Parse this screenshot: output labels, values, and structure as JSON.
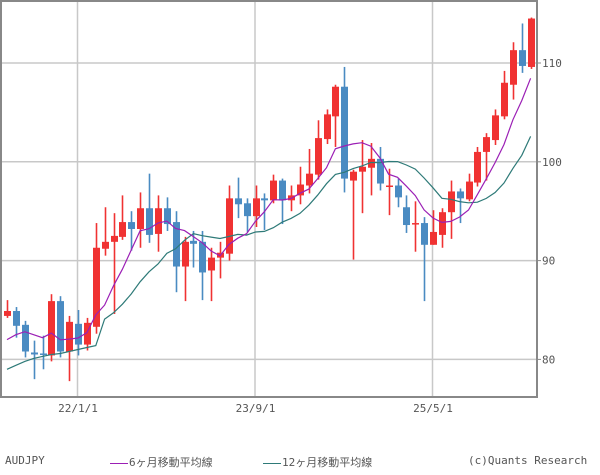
{
  "chart_data": {
    "type": "candlestick",
    "title": "AUDJPY",
    "period": "monthly",
    "xlabel": "",
    "ylabel": "",
    "ylim": [
      76.4,
      116.4
    ],
    "y_ticks": [
      80,
      90,
      100,
      110
    ],
    "x_ticks": [
      {
        "label": "22/1/1",
        "index": 8
      },
      {
        "label": "23/9/1",
        "index": 28
      },
      {
        "label": "25/5/1",
        "index": 48
      }
    ],
    "grid": true,
    "colors": {
      "up": "#f03232",
      "down": "#4a8bc2",
      "ma6": "#9b1fb5",
      "ma12": "#2e7a78",
      "grid": "#c8c8c8",
      "axis": "#888888"
    },
    "ohlc": [
      [
        84.4,
        86.0,
        84.2,
        84.9
      ],
      [
        84.9,
        85.3,
        82.2,
        83.4
      ],
      [
        83.5,
        83.9,
        80.2,
        80.8
      ],
      [
        80.7,
        81.9,
        78.0,
        80.5
      ],
      [
        80.6,
        82.4,
        79.0,
        80.5
      ],
      [
        80.4,
        86.6,
        79.8,
        85.9
      ],
      [
        85.9,
        86.4,
        80.2,
        80.8
      ],
      [
        80.8,
        84.4,
        77.8,
        83.8
      ],
      [
        83.6,
        85.0,
        80.4,
        81.5
      ],
      [
        81.5,
        84.2,
        80.9,
        83.7
      ],
      [
        83.3,
        93.8,
        82.6,
        91.3
      ],
      [
        91.2,
        95.4,
        90.5,
        91.9
      ],
      [
        91.9,
        94.8,
        84.6,
        92.5
      ],
      [
        92.4,
        96.6,
        92.1,
        93.9
      ],
      [
        93.9,
        95.0,
        91.0,
        93.2
      ],
      [
        93.2,
        96.9,
        91.3,
        95.3
      ],
      [
        95.3,
        98.8,
        91.8,
        92.6
      ],
      [
        92.7,
        96.6,
        90.9,
        95.3
      ],
      [
        95.3,
        96.4,
        93.0,
        93.7
      ],
      [
        93.9,
        95.0,
        86.8,
        89.4
      ],
      [
        89.4,
        92.4,
        85.9,
        91.9
      ],
      [
        92.0,
        93.0,
        89.3,
        91.7
      ],
      [
        91.9,
        93.0,
        86.0,
        88.8
      ],
      [
        89.0,
        91.3,
        85.9,
        90.3
      ],
      [
        90.3,
        91.9,
        88.2,
        90.8
      ],
      [
        90.7,
        97.6,
        90.0,
        96.3
      ],
      [
        96.3,
        98.4,
        94.3,
        95.7
      ],
      [
        95.8,
        96.3,
        92.9,
        94.5
      ],
      [
        94.5,
        97.6,
        93.4,
        96.3
      ],
      [
        96.3,
        96.8,
        93.1,
        96.1
      ],
      [
        96.1,
        98.7,
        95.8,
        98.1
      ],
      [
        98.1,
        98.3,
        93.7,
        96.1
      ],
      [
        96.1,
        97.6,
        95.0,
        96.6
      ],
      [
        96.6,
        99.5,
        95.7,
        97.7
      ],
      [
        97.6,
        101.3,
        96.8,
        98.8
      ],
      [
        98.7,
        104.2,
        98.2,
        102.4
      ],
      [
        102.3,
        105.3,
        101.8,
        104.8
      ],
      [
        104.6,
        107.8,
        101.5,
        107.6
      ],
      [
        107.6,
        109.6,
        96.9,
        98.3
      ],
      [
        98.1,
        99.2,
        90.1,
        99.0
      ],
      [
        99.0,
        102.2,
        94.8,
        99.5
      ],
      [
        99.4,
        101.9,
        96.6,
        100.3
      ],
      [
        100.3,
        101.5,
        97.1,
        97.8
      ],
      [
        97.6,
        99.3,
        94.6,
        97.6
      ],
      [
        97.6,
        98.3,
        95.4,
        96.4
      ],
      [
        95.4,
        96.6,
        92.8,
        93.6
      ],
      [
        93.8,
        96.0,
        90.9,
        93.8
      ],
      [
        93.8,
        94.4,
        85.9,
        91.6
      ],
      [
        91.6,
        95.1,
        91.6,
        92.9
      ],
      [
        92.6,
        95.3,
        91.3,
        94.9
      ],
      [
        94.9,
        98.1,
        92.2,
        97.0
      ],
      [
        97.0,
        97.3,
        93.8,
        96.3
      ],
      [
        96.2,
        98.8,
        96.0,
        98.0
      ],
      [
        97.9,
        101.5,
        97.5,
        101.0
      ],
      [
        101.0,
        102.9,
        98.1,
        102.5
      ],
      [
        102.2,
        105.3,
        101.7,
        104.7
      ],
      [
        104.6,
        109.2,
        104.3,
        108.0
      ],
      [
        107.8,
        112.1,
        106.3,
        111.3
      ],
      [
        111.3,
        114.0,
        109.0,
        109.7
      ],
      [
        109.6,
        114.6,
        109.4,
        114.5
      ]
    ],
    "ma6_prefill": [
      82.0,
      82.5,
      82.8,
      82.5,
      82.2
    ],
    "ma12_prefill": [
      79.0,
      79.4,
      79.8,
      80.1,
      80.3,
      80.5,
      80.6,
      80.8,
      81.0,
      81.2,
      81.4
    ],
    "legend": [
      {
        "label": "6ヶ月移動平均線",
        "color": "#9b1fb5"
      },
      {
        "label": "12ヶ月移動平均線",
        "color": "#2e7a78"
      }
    ]
  },
  "footer": {
    "symbol": "AUDJPY",
    "ma6_label": "6ヶ月移動平均線",
    "ma12_label": "12ヶ月移動平均線",
    "credit": "(c)Quants Research"
  }
}
